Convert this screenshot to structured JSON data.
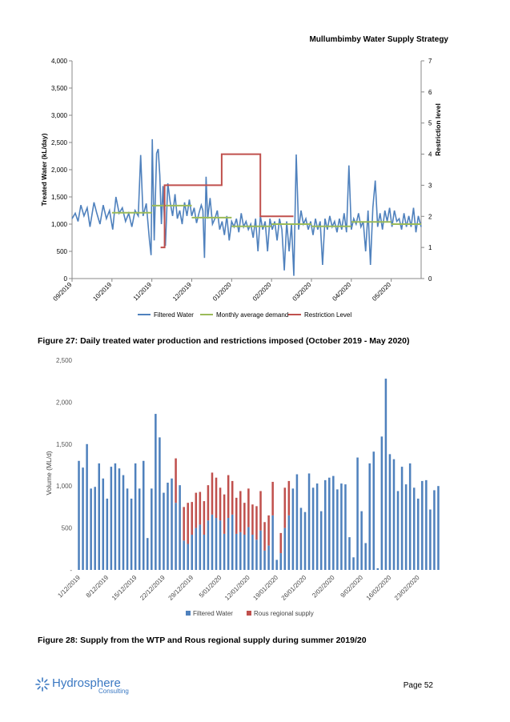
{
  "header": {
    "title": "Mullumbimby Water Supply Strategy"
  },
  "captions": {
    "fig27": "Figure 27: Daily treated water production and restrictions imposed (October 2019 - May 2020)",
    "fig28": "Figure 28: Supply from the WTP and Rous regional supply during summer 2019/20"
  },
  "footer": {
    "logo_name": "Hydrosphere",
    "logo_sub": "Consulting",
    "page": "Page 52"
  },
  "chart_data": [
    {
      "type": "line",
      "ylabel": "Treated Water (kL/day)",
      "y2label": "Restriction level",
      "ylim": [
        0,
        4000
      ],
      "y2lim": [
        0,
        7
      ],
      "y_ticks": [
        "0",
        "500",
        "1,000",
        "1,500",
        "2,000",
        "2,500",
        "3,000",
        "3,500",
        "4,000"
      ],
      "y2_ticks": [
        "0",
        "1",
        "2",
        "3",
        "4",
        "5",
        "6",
        "7"
      ],
      "x_ticks": [
        "09/2019",
        "10/2019",
        "11/2019",
        "12/2019",
        "01/2020",
        "02/2020",
        "03/2020",
        "04/2020",
        "05/2020"
      ],
      "x_range_months": [
        0,
        8.75
      ],
      "legend": "bottom",
      "legend_labels": [
        "Filtered Water",
        "Monthly average demand",
        "Restriction Level"
      ],
      "colors": [
        "#4f81bd",
        "#9bbb59",
        "#c0504d"
      ],
      "filtered_water": [
        [
          0.0,
          1100
        ],
        [
          0.08,
          1200
        ],
        [
          0.15,
          1050
        ],
        [
          0.22,
          1350
        ],
        [
          0.3,
          1150
        ],
        [
          0.38,
          1300
        ],
        [
          0.45,
          950
        ],
        [
          0.55,
          1400
        ],
        [
          0.62,
          1200
        ],
        [
          0.7,
          1000
        ],
        [
          0.78,
          1350
        ],
        [
          0.86,
          1100
        ],
        [
          0.94,
          1250
        ],
        [
          1.02,
          900
        ],
        [
          1.1,
          1500
        ],
        [
          1.18,
          1200
        ],
        [
          1.26,
          1300
        ],
        [
          1.34,
          1050
        ],
        [
          1.42,
          1200
        ],
        [
          1.5,
          950
        ],
        [
          1.58,
          1250
        ],
        [
          1.66,
          1150
        ],
        [
          1.72,
          2270
        ],
        [
          1.78,
          1150
        ],
        [
          1.86,
          1380
        ],
        [
          1.94,
          700
        ],
        [
          1.98,
          430
        ],
        [
          2.01,
          2560
        ],
        [
          2.06,
          700
        ],
        [
          2.12,
          2300
        ],
        [
          2.16,
          2380
        ],
        [
          2.2,
          1900
        ],
        [
          2.24,
          1000
        ],
        [
          2.28,
          1700
        ],
        [
          2.34,
          600
        ],
        [
          2.4,
          1750
        ],
        [
          2.46,
          1400
        ],
        [
          2.52,
          1150
        ],
        [
          2.58,
          1550
        ],
        [
          2.64,
          1100
        ],
        [
          2.7,
          1250
        ],
        [
          2.76,
          1000
        ],
        [
          2.82,
          1400
        ],
        [
          2.88,
          1150
        ],
        [
          2.94,
          1450
        ],
        [
          3.0,
          1150
        ],
        [
          3.06,
          1300
        ],
        [
          3.12,
          1020
        ],
        [
          3.18,
          1200
        ],
        [
          3.24,
          1350
        ],
        [
          3.28,
          1250
        ],
        [
          3.32,
          380
        ],
        [
          3.36,
          1870
        ],
        [
          3.4,
          1100
        ],
        [
          3.46,
          1480
        ],
        [
          3.52,
          1000
        ],
        [
          3.58,
          1100
        ],
        [
          3.64,
          1250
        ],
        [
          3.7,
          900
        ],
        [
          3.76,
          1050
        ],
        [
          3.82,
          800
        ],
        [
          3.88,
          1150
        ],
        [
          3.94,
          700
        ],
        [
          4.0,
          1050
        ],
        [
          4.06,
          950
        ],
        [
          4.12,
          1100
        ],
        [
          4.18,
          850
        ],
        [
          4.24,
          1200
        ],
        [
          4.3,
          950
        ],
        [
          4.36,
          1050
        ],
        [
          4.42,
          900
        ],
        [
          4.48,
          1000
        ],
        [
          4.54,
          750
        ],
        [
          4.6,
          1100
        ],
        [
          4.66,
          500
        ],
        [
          4.72,
          1150
        ],
        [
          4.78,
          900
        ],
        [
          4.84,
          1050
        ],
        [
          4.9,
          500
        ],
        [
          4.96,
          1100
        ],
        [
          5.02,
          900
        ],
        [
          5.08,
          1050
        ],
        [
          5.14,
          700
        ],
        [
          5.2,
          1100
        ],
        [
          5.26,
          900
        ],
        [
          5.32,
          150
        ],
        [
          5.38,
          1050
        ],
        [
          5.44,
          500
        ],
        [
          5.5,
          1000
        ],
        [
          5.56,
          50
        ],
        [
          5.62,
          2280
        ],
        [
          5.68,
          900
        ],
        [
          5.74,
          1250
        ],
        [
          5.8,
          1000
        ],
        [
          5.86,
          1100
        ],
        [
          5.92,
          900
        ],
        [
          5.98,
          1050
        ],
        [
          6.04,
          800
        ],
        [
          6.1,
          1100
        ],
        [
          6.16,
          900
        ],
        [
          6.22,
          1050
        ],
        [
          6.28,
          250
        ],
        [
          6.34,
          1100
        ],
        [
          6.4,
          900
        ],
        [
          6.46,
          1150
        ],
        [
          6.52,
          950
        ],
        [
          6.58,
          1050
        ],
        [
          6.64,
          850
        ],
        [
          6.7,
          1100
        ],
        [
          6.76,
          900
        ],
        [
          6.82,
          1200
        ],
        [
          6.88,
          850
        ],
        [
          6.94,
          2080
        ],
        [
          7.0,
          900
        ],
        [
          7.06,
          1100
        ],
        [
          7.12,
          1000
        ],
        [
          7.18,
          1200
        ],
        [
          7.24,
          950
        ],
        [
          7.3,
          1050
        ],
        [
          7.36,
          500
        ],
        [
          7.42,
          1250
        ],
        [
          7.48,
          250
        ],
        [
          7.54,
          1300
        ],
        [
          7.6,
          1800
        ],
        [
          7.66,
          950
        ],
        [
          7.72,
          1200
        ],
        [
          7.78,
          900
        ],
        [
          7.84,
          1250
        ],
        [
          7.9,
          1050
        ],
        [
          7.96,
          1300
        ],
        [
          8.02,
          950
        ],
        [
          8.08,
          1250
        ],
        [
          8.14,
          1050
        ],
        [
          8.2,
          1100
        ],
        [
          8.26,
          900
        ],
        [
          8.32,
          1200
        ],
        [
          8.38,
          950
        ],
        [
          8.44,
          1150
        ],
        [
          8.5,
          950
        ],
        [
          8.56,
          1300
        ],
        [
          8.62,
          850
        ],
        [
          8.68,
          1150
        ],
        [
          8.75,
          950
        ]
      ],
      "monthly_average": [
        [
          [
            1.0,
            1210
          ],
          [
            2.0,
            1210
          ]
        ],
        [
          [
            2.0,
            1340
          ],
          [
            3.0,
            1340
          ]
        ],
        [
          [
            3.0,
            1120
          ],
          [
            4.0,
            1120
          ]
        ],
        [
          [
            4.0,
            960
          ],
          [
            5.0,
            960
          ]
        ],
        [
          [
            5.0,
            1000
          ],
          [
            6.0,
            1000
          ]
        ],
        [
          [
            6.0,
            960
          ],
          [
            7.0,
            960
          ]
        ],
        [
          [
            7.0,
            1040
          ],
          [
            8.0,
            1040
          ]
        ],
        [
          [
            8.0,
            1000
          ],
          [
            8.75,
            1000
          ]
        ]
      ],
      "restriction_level": [
        [
          2.22,
          1
        ],
        [
          2.32,
          1
        ],
        [
          2.32,
          3
        ],
        [
          3.75,
          3
        ],
        [
          3.75,
          4
        ],
        [
          4.72,
          4
        ],
        [
          4.72,
          2
        ],
        [
          5.55,
          2
        ]
      ]
    },
    {
      "type": "bar",
      "stacked": true,
      "ylabel": "Volume (ML/d)",
      "ylim": [
        0,
        2500
      ],
      "y_ticks": [
        "-",
        "500",
        "1,000",
        "1,500",
        "2,000",
        "2,500"
      ],
      "x_ticks": [
        "1/12/2019",
        "8/12/2019",
        "15/12/2019",
        "22/12/2019",
        "29/12/2019",
        "5/01/2020",
        "12/01/2020",
        "19/01/2020",
        "26/01/2020",
        "2/02/2020",
        "9/02/2020",
        "16/02/2020",
        "23/02/2020"
      ],
      "legend": "bottom",
      "series": [
        {
          "name": "Filtered Water",
          "color": "#4f81bd",
          "values": [
            1300,
            1220,
            1500,
            970,
            990,
            1270,
            1090,
            850,
            1230,
            1270,
            1210,
            1130,
            970,
            850,
            1270,
            970,
            1300,
            380,
            970,
            1860,
            1580,
            920,
            1040,
            1090,
            800,
            1010,
            350,
            310,
            420,
            500,
            540,
            420,
            590,
            660,
            620,
            590,
            430,
            620,
            660,
            430,
            450,
            420,
            510,
            420,
            360,
            470,
            230,
            290,
            650,
            120,
            200,
            500,
            650,
            970,
            1140,
            740,
            690,
            1150,
            980,
            1030,
            700,
            1070,
            1100,
            1120,
            960,
            1030,
            1020,
            390,
            150,
            1340,
            700,
            320,
            1270,
            1410,
            20,
            1590,
            2280,
            1380,
            1320,
            940,
            1230,
            1020,
            1270,
            980,
            850,
            1060,
            1070,
            720,
            950,
            1000
          ]
        },
        {
          "name": "Rous regional supply",
          "color": "#c0504d",
          "values": [
            0,
            0,
            0,
            0,
            0,
            0,
            0,
            0,
            0,
            0,
            0,
            0,
            0,
            0,
            0,
            0,
            0,
            0,
            0,
            0,
            0,
            0,
            0,
            0,
            530,
            0,
            400,
            490,
            390,
            420,
            390,
            400,
            420,
            500,
            480,
            390,
            470,
            510,
            400,
            430,
            490,
            380,
            460,
            360,
            400,
            470,
            340,
            360,
            400,
            0,
            240,
            480,
            410,
            0,
            0,
            0,
            0,
            0,
            0,
            0,
            0,
            0,
            0,
            0,
            0,
            0,
            0,
            0,
            0,
            0,
            0,
            0,
            0,
            0,
            0,
            0,
            0,
            0,
            0,
            0,
            0,
            0,
            0,
            0,
            0,
            0,
            0,
            0,
            0,
            0
          ]
        }
      ]
    }
  ]
}
